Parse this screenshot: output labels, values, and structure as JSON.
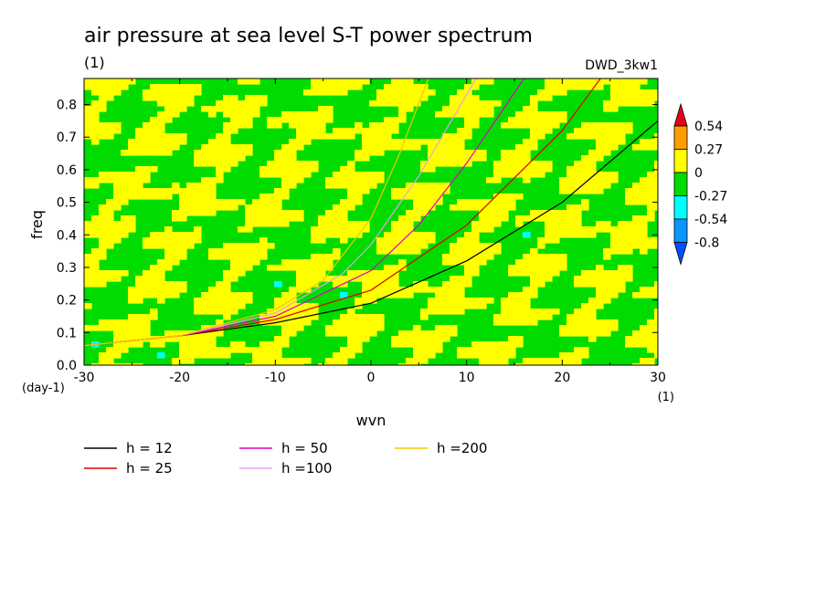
{
  "chart_data": {
    "type": "heatmap",
    "title": "air pressure at sea level S-T power spectrum",
    "subtitle_left": "(1)",
    "subtitle_right": "DWD_3kw1",
    "xlabel": "wvn",
    "ylabel": "freq",
    "x_unit_label": "(1)",
    "y_unit_label": "(day-1)",
    "xlim": [
      -30,
      30
    ],
    "ylim": [
      0,
      0.88
    ],
    "x_ticks": [
      -30,
      -20,
      -10,
      0,
      10,
      20,
      30
    ],
    "x_tick_labels": [
      "-30",
      "-20",
      "-10",
      "0",
      "10",
      "20",
      "30"
    ],
    "y_ticks": [
      0,
      0.1,
      0.2,
      0.3,
      0.4,
      0.5,
      0.6,
      0.7,
      0.8
    ],
    "y_tick_labels": [
      "0.0",
      "0.1",
      "0.2",
      "0.3",
      "0.4",
      "0.5",
      "0.6",
      "0.7",
      "0.8"
    ],
    "colorbar": {
      "levels": [
        "0.54",
        "0.27",
        "0",
        "-0.27",
        "-0.54",
        "-0.8"
      ],
      "colors": [
        "#e8001a",
        "#ff9d00",
        "#ffff00",
        "#00dc00",
        "#00ffff",
        "#0a96ff",
        "#0050ff"
      ],
      "extend": "both"
    },
    "series": [
      {
        "name": "h = 12",
        "color": "#000000",
        "x": [
          -30,
          -20,
          -10,
          0,
          10,
          20,
          30
        ],
        "y": [
          0.06,
          0.09,
          0.13,
          0.19,
          0.32,
          0.5,
          0.75
        ]
      },
      {
        "name": "h = 25",
        "color": "#e00000",
        "x": [
          -30,
          -20,
          -10,
          0,
          10,
          20,
          24
        ],
        "y": [
          0.06,
          0.09,
          0.14,
          0.23,
          0.43,
          0.72,
          0.88
        ]
      },
      {
        "name": "h = 50",
        "color": "#e000c0",
        "x": [
          -30,
          -20,
          -10,
          0,
          5,
          10,
          16
        ],
        "y": [
          0.06,
          0.09,
          0.15,
          0.29,
          0.43,
          0.62,
          0.88
        ]
      },
      {
        "name": "h =100",
        "color": "#e8a0e0",
        "x": [
          -30,
          -20,
          -10,
          -3,
          0,
          5,
          11
        ],
        "y": [
          0.06,
          0.09,
          0.16,
          0.28,
          0.37,
          0.58,
          0.88
        ]
      },
      {
        "name": "h =200",
        "color": "#f0c800",
        "x": [
          -30,
          -20,
          -10,
          -5,
          0,
          3,
          6
        ],
        "y": [
          0.06,
          0.09,
          0.17,
          0.26,
          0.45,
          0.65,
          0.88
        ]
      }
    ],
    "grid": false,
    "legend_position": "bottom-left"
  }
}
